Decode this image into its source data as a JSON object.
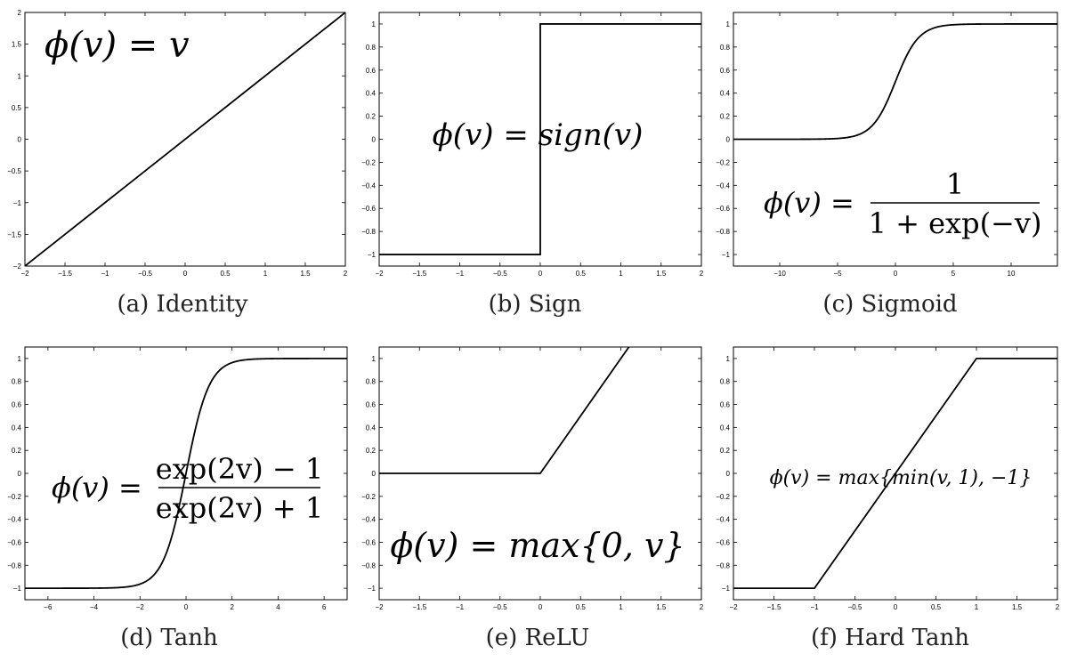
{
  "chart_data": [
    {
      "type": "line",
      "caption": "(a) Identity",
      "formula": "ϕ(v) = v",
      "function": "identity",
      "xlim": [
        -2,
        2
      ],
      "ylim": [
        -2,
        2
      ],
      "xticks": [
        -2,
        -1.5,
        -1,
        -0.5,
        0,
        0.5,
        1,
        1.5,
        2
      ],
      "yticks": [
        -2,
        -1.5,
        -1,
        -0.5,
        0,
        0.5,
        1,
        1.5,
        2
      ],
      "xtick_labels": [
        "−2",
        "−1.5",
        "−1",
        "−0.5",
        "0",
        "0.5",
        "1",
        "1.5",
        "2"
      ],
      "ytick_labels": [
        "−2",
        "−1.5",
        "−1",
        "−0.5",
        "0",
        "0.5",
        "1",
        "1.5",
        "2"
      ],
      "series": [
        {
          "x": [
            -2,
            2
          ],
          "y": [
            -2,
            2
          ]
        }
      ]
    },
    {
      "type": "line",
      "caption": "(b) Sign",
      "formula": "ϕ(v) = sign(v)",
      "function": "sign",
      "xlim": [
        -2,
        2
      ],
      "ylim": [
        -1.1,
        1.1
      ],
      "xticks": [
        -2,
        -1.5,
        -1,
        -0.5,
        0,
        0.5,
        1,
        1.5,
        2
      ],
      "yticks": [
        -1,
        -0.8,
        -0.6,
        -0.4,
        -0.2,
        0,
        0.2,
        0.4,
        0.6,
        0.8,
        1
      ],
      "xtick_labels": [
        "−2",
        "−1.5",
        "−1",
        "−0.5",
        "0",
        "0.5",
        "1",
        "1.5",
        "2"
      ],
      "ytick_labels": [
        "−1",
        "−0.8",
        "−0.6",
        "−0.4",
        "−0.2",
        "0",
        "0.2",
        "0.4",
        "0.6",
        "0.8",
        "1"
      ],
      "series": [
        {
          "x": [
            -2,
            0,
            0,
            2
          ],
          "y": [
            -1,
            -1,
            1,
            1
          ]
        }
      ]
    },
    {
      "type": "line",
      "caption": "(c) Sigmoid",
      "formula_lhs": "ϕ(v) =",
      "formula_num": "1",
      "formula_den": "1 + exp(−v)",
      "function": "sigmoid",
      "xlim": [
        -14,
        14
      ],
      "ylim": [
        -1.1,
        1.1
      ],
      "xticks": [
        -10,
        -5,
        0,
        5,
        10
      ],
      "yticks": [
        -1,
        -0.8,
        -0.6,
        -0.4,
        -0.2,
        0,
        0.2,
        0.4,
        0.6,
        0.8,
        1
      ],
      "xtick_labels": [
        "−10",
        "−5",
        "0",
        "5",
        "10"
      ],
      "ytick_labels": [
        "−1",
        "−0.8",
        "−0.6",
        "−0.4",
        "−0.2",
        "0",
        "0.2",
        "0.4",
        "0.6",
        "0.8",
        "1"
      ]
    },
    {
      "type": "line",
      "caption": "(d) Tanh",
      "formula_lhs": "ϕ(v) =",
      "formula_num": "exp(2v) − 1",
      "formula_den": "exp(2v) + 1",
      "function": "tanh",
      "xlim": [
        -7,
        7
      ],
      "ylim": [
        -1.1,
        1.1
      ],
      "xticks": [
        -6,
        -4,
        -2,
        0,
        2,
        4,
        6
      ],
      "yticks": [
        -1,
        -0.8,
        -0.6,
        -0.4,
        -0.2,
        0,
        0.2,
        0.4,
        0.6,
        0.8,
        1
      ],
      "xtick_labels": [
        "−6",
        "−4",
        "−2",
        "0",
        "2",
        "4",
        "6"
      ],
      "ytick_labels": [
        "−1",
        "−0.8",
        "−0.6",
        "−0.4",
        "−0.2",
        "0",
        "0.2",
        "0.4",
        "0.6",
        "0.8",
        "1"
      ]
    },
    {
      "type": "line",
      "caption": "(e) ReLU",
      "formula": "ϕ(v) = max{0, v}",
      "function": "relu",
      "xlim": [
        -2,
        2
      ],
      "ylim": [
        -1.1,
        1.1
      ],
      "xticks": [
        -2,
        -1.5,
        -1,
        -0.5,
        0,
        0.5,
        1,
        1.5,
        2
      ],
      "yticks": [
        -1,
        -0.8,
        -0.6,
        -0.4,
        -0.2,
        0,
        0.2,
        0.4,
        0.6,
        0.8,
        1
      ],
      "xtick_labels": [
        "−2",
        "−1.5",
        "−1",
        "−0.5",
        "0",
        "0.5",
        "1",
        "1.5",
        "2"
      ],
      "ytick_labels": [
        "−1",
        "−0.8",
        "−0.6",
        "−0.4",
        "−0.2",
        "0",
        "0.2",
        "0.4",
        "0.6",
        "0.8",
        "1"
      ],
      "series": [
        {
          "x": [
            -2,
            0,
            1.1
          ],
          "y": [
            0,
            0,
            1.1
          ]
        }
      ]
    },
    {
      "type": "line",
      "caption": "(f) Hard Tanh",
      "formula": "ϕ(v) = max{min(v, 1), −1}",
      "function": "hardtanh",
      "xlim": [
        -2,
        2
      ],
      "ylim": [
        -1.1,
        1.1
      ],
      "xticks": [
        -2,
        -1.5,
        -1,
        -0.5,
        0,
        0.5,
        1,
        1.5,
        2
      ],
      "yticks": [
        -1,
        -0.8,
        -0.6,
        -0.4,
        -0.2,
        0,
        0.2,
        0.4,
        0.6,
        0.8,
        1
      ],
      "xtick_labels": [
        "−2",
        "−1.5",
        "−1",
        "−0.5",
        "0",
        "0.5",
        "1",
        "1.5",
        "2"
      ],
      "ytick_labels": [
        "−1",
        "−0.8",
        "−0.6",
        "−0.4",
        "−0.2",
        "0",
        "0.2",
        "0.4",
        "0.6",
        "0.8",
        "1"
      ],
      "series": [
        {
          "x": [
            -2,
            -1,
            1,
            2
          ],
          "y": [
            -1,
            -1,
            1,
            1
          ]
        }
      ]
    }
  ]
}
